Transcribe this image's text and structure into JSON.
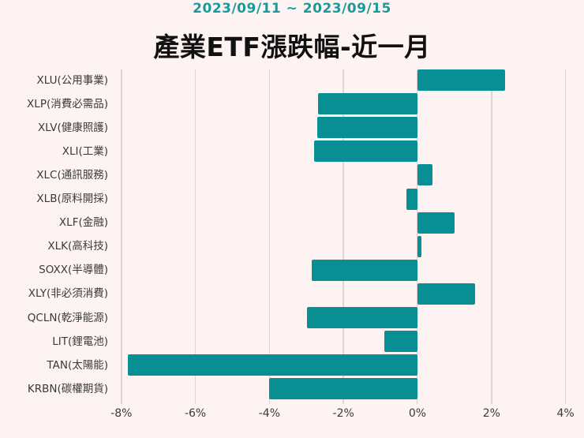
{
  "header": {
    "subtitle": "2023/09/11 ~ 2023/09/15",
    "title": "產業ETF漲跌幅-近一月"
  },
  "colors": {
    "background": "#fdf3f2",
    "bar": "#078f94",
    "subtitle": "#1b9a97",
    "grid": "#e0d3d3"
  },
  "chart_data": {
    "type": "bar",
    "orientation": "horizontal",
    "title": "產業ETF漲跌幅-近一月",
    "subtitle": "2023/09/11 ~ 2023/09/15",
    "xlabel": "",
    "ylabel": "",
    "xlim": [
      -8,
      4
    ],
    "x_ticks": [
      "-8%",
      "-6%",
      "-4%",
      "-2%",
      "0%",
      "2%",
      "4%"
    ],
    "grid": "vertical",
    "legend": "none",
    "categories": [
      "XLU(公用事業)",
      "XLP(消費必需品)",
      "XLV(健康照護)",
      "XLI(工業)",
      "XLC(通訊服務)",
      "XLB(原料開採)",
      "XLF(金融)",
      "XLK(高科技)",
      "SOXX(半導體)",
      "XLY(非必須消費)",
      "QCLN(乾淨能源)",
      "LIT(鋰電池)",
      "TAN(太陽能)",
      "KRBN(碳權期貨)"
    ],
    "values": [
      2.37,
      -2.69,
      -2.71,
      -2.8,
      0.4,
      -0.3,
      1.0,
      0.11,
      -2.85,
      1.56,
      -2.98,
      -0.9,
      -7.82,
      -4.0
    ],
    "unit": "%"
  }
}
